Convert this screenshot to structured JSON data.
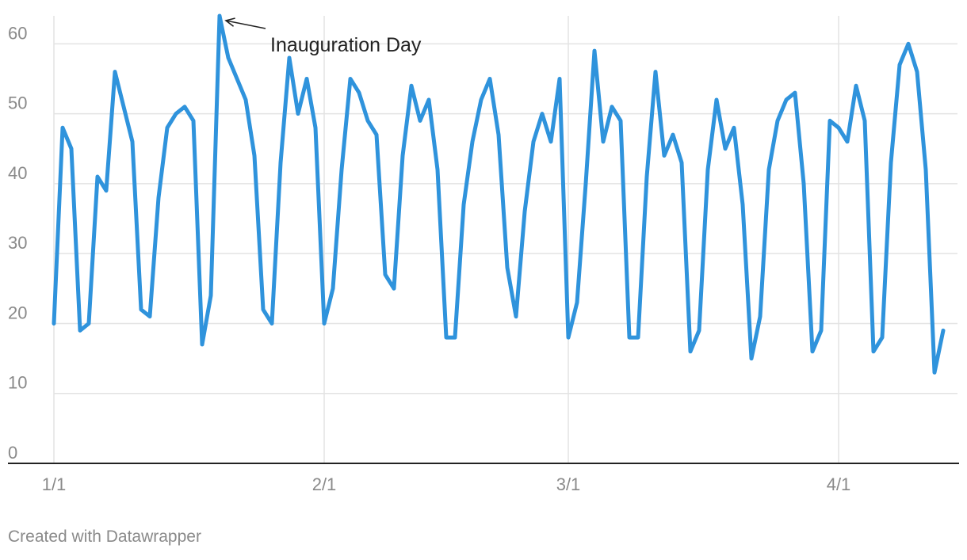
{
  "chart_data": {
    "type": "line",
    "y_ticks": [
      0,
      10,
      20,
      30,
      40,
      50,
      60
    ],
    "ylim": [
      0,
      64
    ],
    "x_ticks": [
      {
        "label": "1/1",
        "date": "2021-01-01"
      },
      {
        "label": "2/1",
        "date": "2021-02-01"
      },
      {
        "label": "3/1",
        "date": "2021-03-01"
      },
      {
        "label": "4/1",
        "date": "2021-04-01"
      }
    ],
    "x_range": [
      "2021-01-01",
      "2021-04-12"
    ],
    "grid": true,
    "series": [
      {
        "color": "#2f93dc",
        "points": [
          [
            "2021-01-01",
            20
          ],
          [
            "2021-01-02",
            48
          ],
          [
            "2021-01-03",
            45
          ],
          [
            "2021-01-04",
            19
          ],
          [
            "2021-01-05",
            20
          ],
          [
            "2021-01-06",
            41
          ],
          [
            "2021-01-07",
            39
          ],
          [
            "2021-01-08",
            56
          ],
          [
            "2021-01-09",
            51
          ],
          [
            "2021-01-10",
            46
          ],
          [
            "2021-01-11",
            22
          ],
          [
            "2021-01-12",
            21
          ],
          [
            "2021-01-13",
            38
          ],
          [
            "2021-01-14",
            48
          ],
          [
            "2021-01-15",
            50
          ],
          [
            "2021-01-16",
            51
          ],
          [
            "2021-01-17",
            49
          ],
          [
            "2021-01-18",
            17
          ],
          [
            "2021-01-19",
            24
          ],
          [
            "2021-01-20",
            64
          ],
          [
            "2021-01-21",
            58
          ],
          [
            "2021-01-22",
            55
          ],
          [
            "2021-01-23",
            52
          ],
          [
            "2021-01-24",
            44
          ],
          [
            "2021-01-25",
            22
          ],
          [
            "2021-01-26",
            20
          ],
          [
            "2021-01-27",
            43
          ],
          [
            "2021-01-28",
            58
          ],
          [
            "2021-01-29",
            50
          ],
          [
            "2021-01-30",
            55
          ],
          [
            "2021-01-31",
            48
          ],
          [
            "2021-02-01",
            20
          ],
          [
            "2021-02-02",
            25
          ],
          [
            "2021-02-03",
            42
          ],
          [
            "2021-02-04",
            55
          ],
          [
            "2021-02-05",
            53
          ],
          [
            "2021-02-06",
            49
          ],
          [
            "2021-02-07",
            47
          ],
          [
            "2021-02-08",
            27
          ],
          [
            "2021-02-09",
            25
          ],
          [
            "2021-02-10",
            44
          ],
          [
            "2021-02-11",
            54
          ],
          [
            "2021-02-12",
            49
          ],
          [
            "2021-02-13",
            52
          ],
          [
            "2021-02-14",
            42
          ],
          [
            "2021-02-15",
            18
          ],
          [
            "2021-02-16",
            18
          ],
          [
            "2021-02-17",
            37
          ],
          [
            "2021-02-18",
            46
          ],
          [
            "2021-02-19",
            52
          ],
          [
            "2021-02-20",
            55
          ],
          [
            "2021-02-21",
            47
          ],
          [
            "2021-02-22",
            28
          ],
          [
            "2021-02-23",
            21
          ],
          [
            "2021-02-24",
            36
          ],
          [
            "2021-02-25",
            46
          ],
          [
            "2021-02-26",
            50
          ],
          [
            "2021-02-27",
            46
          ],
          [
            "2021-02-28",
            55
          ],
          [
            "2021-03-01",
            18
          ],
          [
            "2021-03-02",
            23
          ],
          [
            "2021-03-03",
            40
          ],
          [
            "2021-03-04",
            59
          ],
          [
            "2021-03-05",
            46
          ],
          [
            "2021-03-06",
            51
          ],
          [
            "2021-03-07",
            49
          ],
          [
            "2021-03-08",
            18
          ],
          [
            "2021-03-09",
            18
          ],
          [
            "2021-03-10",
            41
          ],
          [
            "2021-03-11",
            56
          ],
          [
            "2021-03-12",
            44
          ],
          [
            "2021-03-13",
            47
          ],
          [
            "2021-03-14",
            43
          ],
          [
            "2021-03-15",
            16
          ],
          [
            "2021-03-16",
            19
          ],
          [
            "2021-03-17",
            42
          ],
          [
            "2021-03-18",
            52
          ],
          [
            "2021-03-19",
            45
          ],
          [
            "2021-03-20",
            48
          ],
          [
            "2021-03-21",
            37
          ],
          [
            "2021-03-22",
            15
          ],
          [
            "2021-03-23",
            21
          ],
          [
            "2021-03-24",
            42
          ],
          [
            "2021-03-25",
            49
          ],
          [
            "2021-03-26",
            52
          ],
          [
            "2021-03-27",
            53
          ],
          [
            "2021-03-28",
            40
          ],
          [
            "2021-03-29",
            16
          ],
          [
            "2021-03-30",
            19
          ],
          [
            "2021-03-31",
            49
          ],
          [
            "2021-04-01",
            48
          ],
          [
            "2021-04-02",
            46
          ],
          [
            "2021-04-03",
            54
          ],
          [
            "2021-04-04",
            49
          ],
          [
            "2021-04-05",
            16
          ],
          [
            "2021-04-06",
            18
          ],
          [
            "2021-04-07",
            43
          ],
          [
            "2021-04-08",
            57
          ],
          [
            "2021-04-09",
            60
          ],
          [
            "2021-04-10",
            56
          ],
          [
            "2021-04-11",
            42
          ],
          [
            "2021-04-12",
            13
          ],
          [
            "2021-04-13",
            19
          ]
        ]
      }
    ],
    "annotation": {
      "text": "Inauguration Day",
      "target": [
        "2021-01-20",
        64
      ]
    },
    "colors": {
      "line": "#2f93dc",
      "grid": "#e3e3e3",
      "axis": "#222222",
      "tick_text": "#8a8a8a",
      "annotation_text": "#222222"
    }
  },
  "footer": {
    "credit": "Created with Datawrapper"
  }
}
